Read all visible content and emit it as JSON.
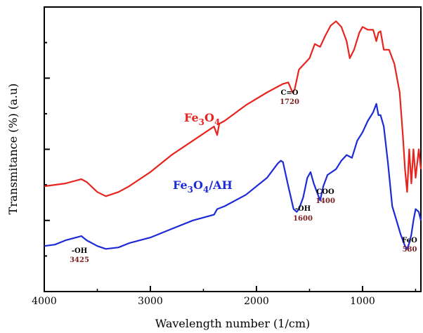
{
  "chart_data": {
    "type": "line",
    "xlabel": "Wavelength number (1/cm)",
    "ylabel": "Transmitance (%) (a.u)",
    "xlim": [
      4000,
      450
    ],
    "x_reversed": true,
    "ylim": [
      0,
      100
    ],
    "xticks": [
      4000,
      3000,
      2000,
      1000
    ],
    "y_ticklabels_shown": false,
    "grid": false,
    "colors": {
      "fe3o4": "#e8241f",
      "fe3o4_ah": "#1d2bd6",
      "annotation_value": "#7a1f1f"
    },
    "series": [
      {
        "name": "Fe3O4",
        "label_html": {
          "base": "Fe",
          "sub1": "3",
          "mid": "O",
          "sub2": "4"
        },
        "color": "#e8241f",
        "x": [
          4000,
          3900,
          3800,
          3700,
          3650,
          3600,
          3500,
          3420,
          3300,
          3200,
          3000,
          2800,
          2600,
          2400,
          2370,
          2350,
          2300,
          2100,
          1900,
          1800,
          1750,
          1700,
          1660,
          1640,
          1600,
          1550,
          1500,
          1450,
          1400,
          1350,
          1300,
          1250,
          1200,
          1150,
          1120,
          1080,
          1030,
          1000,
          950,
          900,
          870,
          850,
          830,
          800,
          750,
          700,
          650,
          620,
          600,
          580,
          560,
          540,
          520,
          500,
          470,
          450
        ],
        "y": [
          37,
          37.5,
          38,
          39,
          39.5,
          38.5,
          35,
          33.5,
          35,
          37,
          42,
          48,
          53,
          58,
          55,
          59,
          60,
          65.5,
          70,
          72,
          73,
          73.5,
          70,
          71,
          78,
          80,
          82,
          87,
          86,
          90,
          93.5,
          95,
          93,
          88,
          82,
          85,
          91,
          93,
          92,
          92,
          88,
          91,
          91.5,
          85,
          85,
          80,
          70,
          55,
          43,
          35,
          50,
          38,
          50,
          40,
          50,
          43
        ]
      },
      {
        "name": "Fe3O4/AH",
        "label_html": {
          "base": "Fe",
          "sub1": "3",
          "mid": "O",
          "sub2": "4",
          "tail": "/AH"
        },
        "color": "#1d2bd6",
        "x": [
          4000,
          3900,
          3800,
          3700,
          3650,
          3600,
          3500,
          3420,
          3300,
          3200,
          3000,
          2800,
          2600,
          2400,
          2370,
          2300,
          2100,
          1900,
          1800,
          1770,
          1750,
          1700,
          1650,
          1620,
          1600,
          1560,
          1520,
          1490,
          1460,
          1420,
          1400,
          1370,
          1330,
          1250,
          1200,
          1150,
          1100,
          1050,
          1000,
          950,
          900,
          870,
          850,
          830,
          800,
          760,
          720,
          680,
          640,
          600,
          580,
          560,
          540,
          520,
          500,
          470,
          450
        ],
        "y": [
          16,
          16.5,
          18,
          19,
          19.5,
          18,
          16,
          15,
          15.5,
          17,
          19,
          22,
          25,
          27,
          29,
          30,
          34,
          40,
          45,
          46,
          45.5,
          37,
          29,
          28,
          29,
          33,
          40,
          42,
          38,
          34,
          32,
          37,
          41,
          43,
          46,
          48,
          47,
          53,
          56,
          60,
          63,
          66,
          62,
          62,
          58,
          45,
          30,
          25,
          20,
          16,
          15,
          17,
          20,
          25,
          29,
          28,
          25
        ]
      }
    ],
    "annotations": [
      {
        "label": "C=O",
        "value": "1720"
      },
      {
        "label": "COO",
        "value": "1400"
      },
      {
        "label": "-OH",
        "value": "1600"
      },
      {
        "label": "-OH",
        "value": "3425"
      },
      {
        "label": "FeO",
        "value": "580"
      }
    ]
  }
}
